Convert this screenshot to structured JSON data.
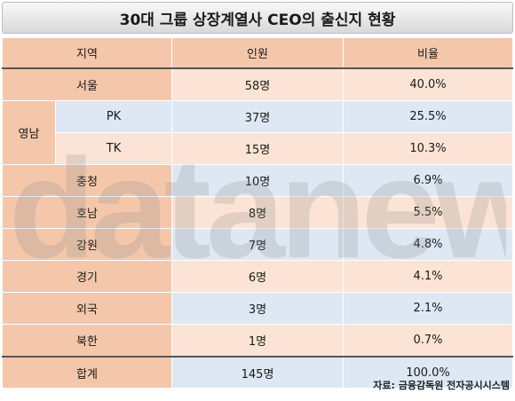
{
  "title": "30대 그룹 상장계열사 CEO의 출신지 현황",
  "headers": [
    "지역",
    "인원",
    "비율"
  ],
  "rows": {
    "seoul": {
      "region": "서울",
      "count": "58명",
      "ratio": "40.0%"
    },
    "yeongnam": "영남",
    "pk": {
      "region": "PK",
      "count": "37명",
      "ratio": "25.5%"
    },
    "tk": {
      "region": "TK",
      "count": "15명",
      "ratio": "10.3%"
    },
    "chungcheong": {
      "region": "충청",
      "count": "10명",
      "ratio": "6.9%"
    },
    "honam": {
      "region": "호남",
      "count": "8명",
      "ratio": "5.5%"
    },
    "gangwon": {
      "region": "강원",
      "count": "7명",
      "ratio": "4.8%"
    },
    "gyeonggi": {
      "region": "경기",
      "count": "6명",
      "ratio": "4.1%"
    },
    "foreign": {
      "region": "외국",
      "count": "3명",
      "ratio": "2.1%"
    },
    "north": {
      "region": "북한",
      "count": "1명",
      "ratio": "0.7%"
    },
    "total": {
      "region": "합계",
      "count": "145명",
      "ratio": "100.0%"
    }
  },
  "watermark": "datanews",
  "source": "자료: 금융감독원 전자공시시스템",
  "colors": {
    "label": "#f4c7aa",
    "peach": "#fbe4d5",
    "blue": "#dde8f4"
  }
}
